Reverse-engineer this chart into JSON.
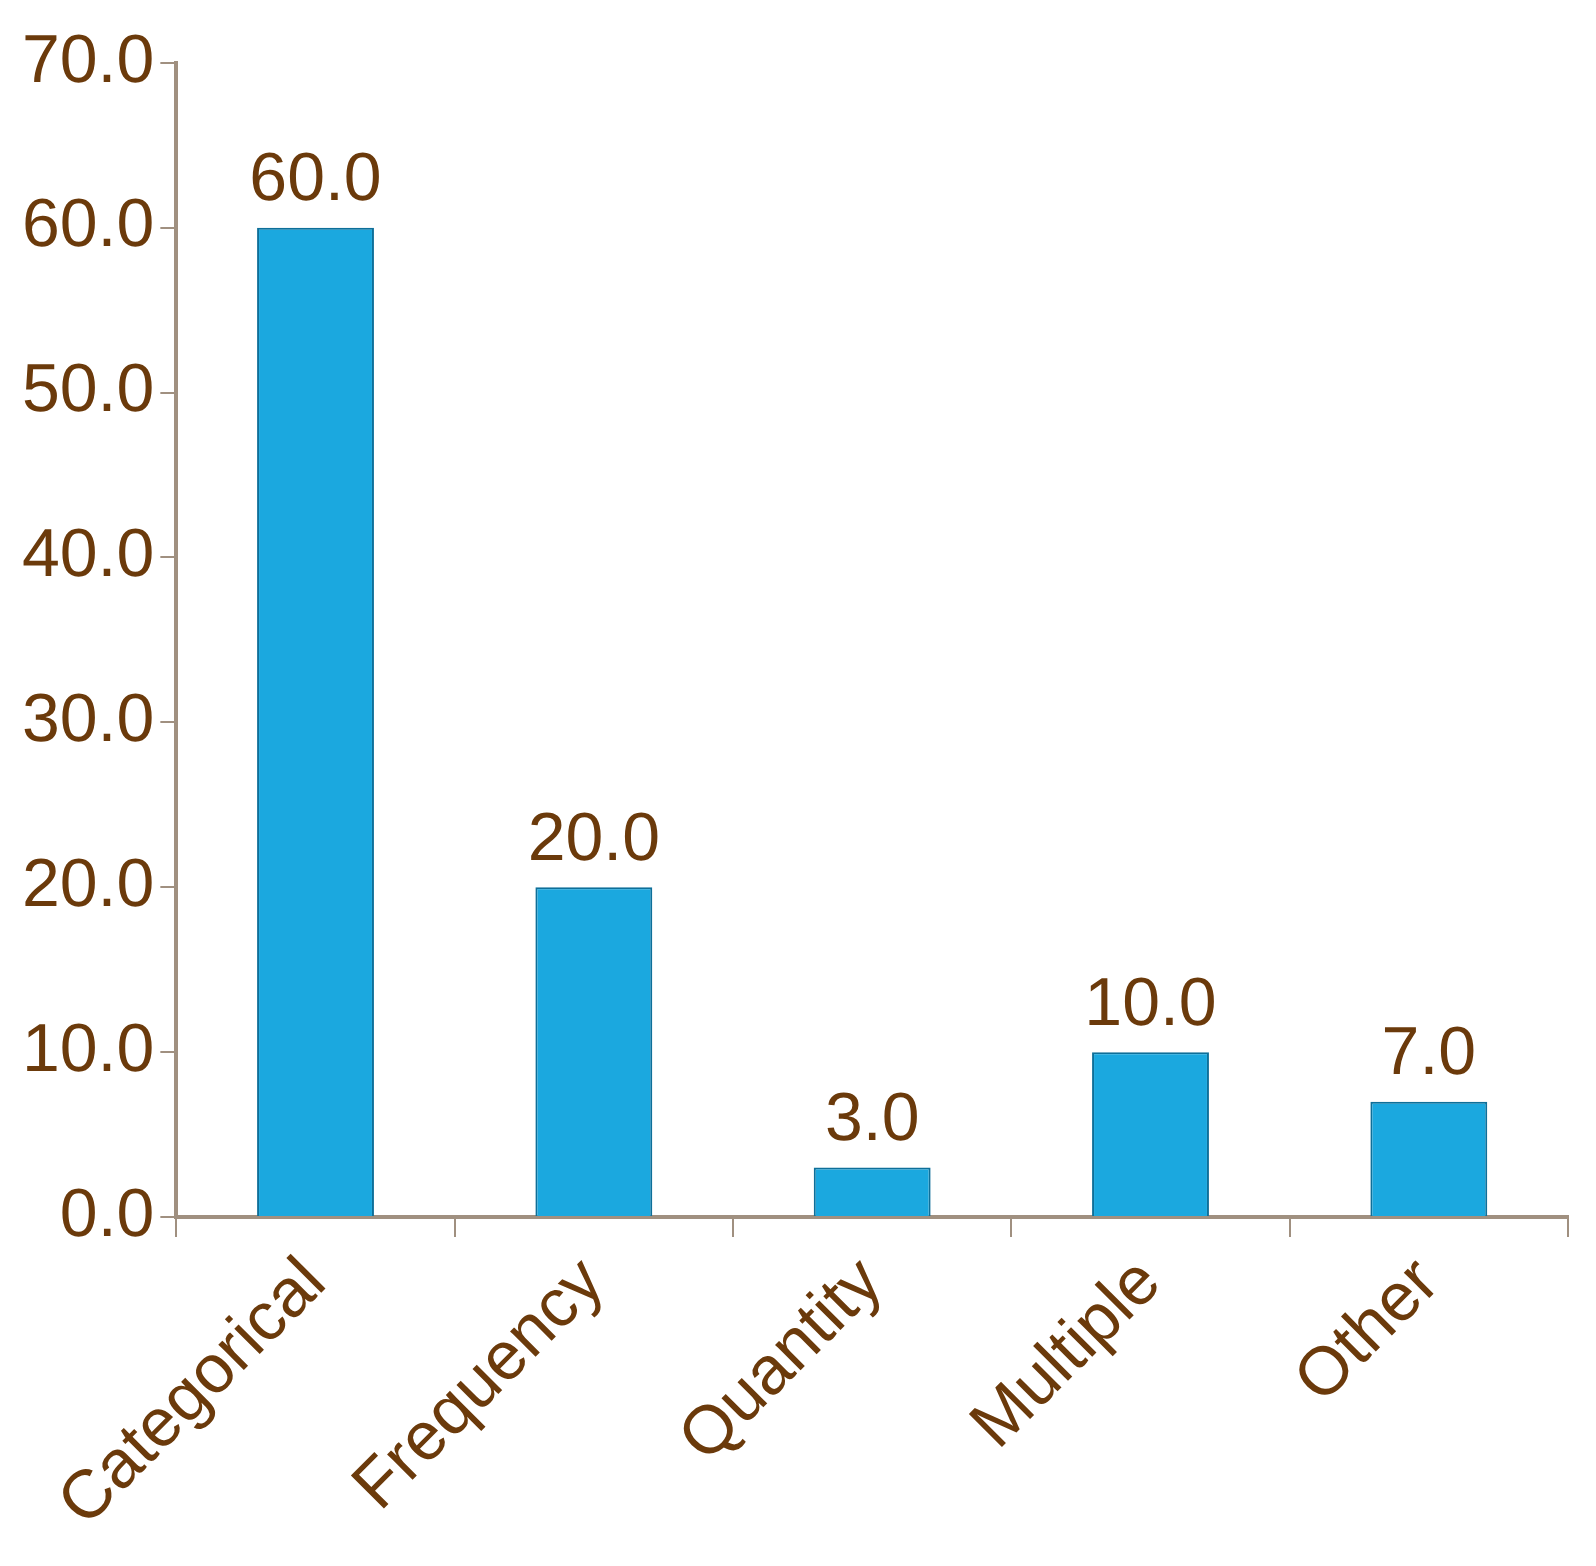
{
  "chart_data": {
    "type": "bar",
    "categories": [
      "Categorical",
      "Frequency",
      "Quantity",
      "Multiple",
      "Other"
    ],
    "values": [
      60,
      20,
      3,
      10,
      7
    ],
    "value_labels": [
      "60.0",
      "20.0",
      "3.0",
      "10.0",
      "7.0"
    ],
    "color": "#1ba8df",
    "ylim": [
      0,
      70
    ],
    "yticks": [
      {
        "value": 0,
        "label": "0.0"
      },
      {
        "value": 10,
        "label": "10.0"
      },
      {
        "value": 20,
        "label": "20.0"
      },
      {
        "value": 30,
        "label": "30.0"
      },
      {
        "value": 40,
        "label": "40.0"
      },
      {
        "value": 50,
        "label": "50.0"
      },
      {
        "value": 60,
        "label": "60.0"
      },
      {
        "value": 70,
        "label": "70.0"
      }
    ],
    "grid": false,
    "legend": false
  }
}
